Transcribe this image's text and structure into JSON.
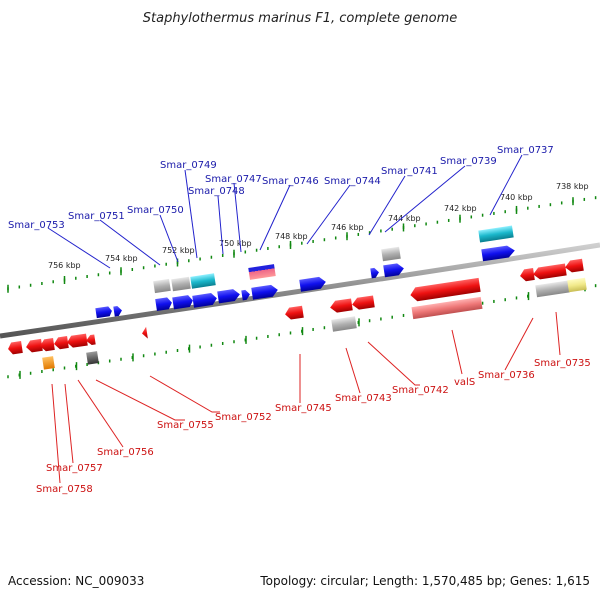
{
  "title": "Staphylothermus marinus F1, complete genome",
  "footer": {
    "accession": "Accession: NC_009033",
    "topology": "Topology: circular; Length: 1,570,485 bp; Genes: 1,615"
  },
  "colors": {
    "forward_label": "#1a1aaa",
    "reverse_label": "#cc1111",
    "forward_gene": "#1010ee",
    "reverse_gene": "#ee1111",
    "rna": "#aaaaaa",
    "cyan": "#1bb8cc",
    "tick": "#118811",
    "axis": "#8c8c8c"
  },
  "scale_labels": [
    "756 kbp",
    "754 kbp",
    "752 kbp",
    "750 kbp",
    "748 kbp",
    "746 kbp",
    "744 kbp",
    "742 kbp",
    "740 kbp",
    "738 kbp"
  ],
  "forward_labels": [
    "Smar_0753",
    "Smar_0751",
    "Smar_0750",
    "Smar_0749",
    "Smar_0748",
    "Smar_0747",
    "Smar_0746",
    "Smar_0744",
    "Smar_0741",
    "Smar_0739",
    "Smar_0737"
  ],
  "reverse_labels": [
    "Smar_0758",
    "Smar_0757",
    "Smar_0756",
    "Smar_0755",
    "Smar_0752",
    "Smar_0745",
    "Smar_0743",
    "Smar_0742",
    "valS",
    "Smar_0736",
    "Smar_0735"
  ]
}
